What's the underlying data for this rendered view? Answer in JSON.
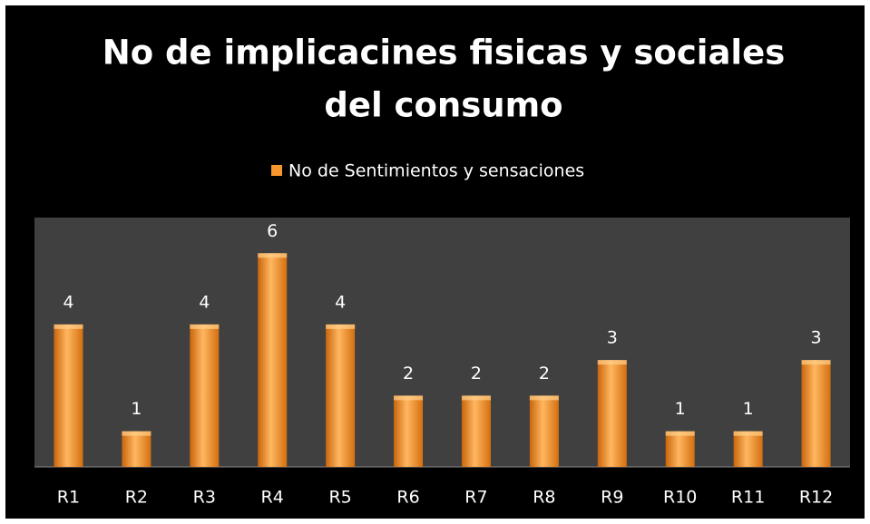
{
  "chart_data": {
    "type": "bar",
    "title": [
      "No de implicacines fisicas y sociales",
      "del consumo"
    ],
    "categories": [
      "R1",
      "R2",
      "R3",
      "R4",
      "R5",
      "R6",
      "R7",
      "R8",
      "R9",
      "R10",
      "R11",
      "R12"
    ],
    "series": [
      {
        "name": "No de Sentimientos y sensaciones",
        "color": "#f7962e",
        "values": [
          4,
          1,
          4,
          6,
          4,
          2,
          2,
          2,
          3,
          1,
          1,
          3
        ]
      }
    ],
    "ylim": [
      0,
      7
    ],
    "legend": "top"
  }
}
